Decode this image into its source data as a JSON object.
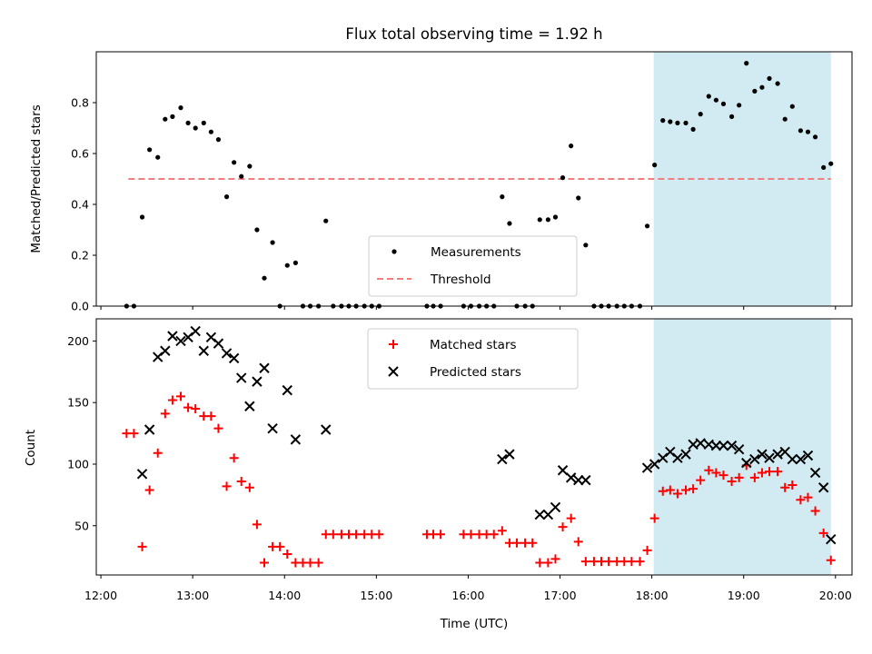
{
  "chart_data": {
    "title": "Flux total observing time = 1.92 h",
    "xlabel": "Time (UTC)",
    "x_ticks": [
      "12:00",
      "13:00",
      "14:00",
      "15:00",
      "16:00",
      "17:00",
      "18:00",
      "19:00",
      "20:00"
    ],
    "x_tick_hours": [
      12,
      13,
      14,
      15,
      16,
      17,
      18,
      19,
      20
    ],
    "xlim_hours": [
      11.95,
      20.18
    ],
    "highlight_span_hours": [
      18.02,
      19.95
    ],
    "colors": {
      "highlight": "#add8e6",
      "measurements": "#000000",
      "threshold": "#f08080",
      "matched": "#ff0000",
      "predicted": "#000000"
    },
    "panels": [
      {
        "type": "scatter",
        "ylabel": "Matched/Predicted stars",
        "ylim": [
          0,
          1.0
        ],
        "y_ticks": [
          0.0,
          0.2,
          0.4,
          0.6,
          0.8
        ],
        "y_tick_labels": [
          "0.0",
          "0.2",
          "0.4",
          "0.6",
          "0.8"
        ],
        "legend_position": "bottom-center",
        "legend": [
          "Measurements",
          "Threshold"
        ],
        "threshold": {
          "value": 0.5,
          "x_range": [
            12.3,
            19.95
          ]
        },
        "series": [
          {
            "name": "Measurements",
            "marker": "dot",
            "points": [
              [
                12.28,
                0.0
              ],
              [
                12.36,
                0.0
              ],
              [
                12.45,
                0.35
              ],
              [
                12.53,
                0.615
              ],
              [
                12.62,
                0.585
              ],
              [
                12.7,
                0.735
              ],
              [
                12.78,
                0.745
              ],
              [
                12.87,
                0.78
              ],
              [
                12.95,
                0.72
              ],
              [
                13.03,
                0.7
              ],
              [
                13.12,
                0.72
              ],
              [
                13.2,
                0.685
              ],
              [
                13.28,
                0.655
              ],
              [
                13.37,
                0.43
              ],
              [
                13.45,
                0.565
              ],
              [
                13.53,
                0.51
              ],
              [
                13.62,
                0.55
              ],
              [
                13.7,
                0.3
              ],
              [
                13.78,
                0.11
              ],
              [
                13.87,
                0.25
              ],
              [
                13.95,
                0.0
              ],
              [
                14.03,
                0.16
              ],
              [
                14.12,
                0.17
              ],
              [
                14.2,
                0.0
              ],
              [
                14.28,
                0.0
              ],
              [
                14.37,
                0.0
              ],
              [
                14.45,
                0.335
              ],
              [
                14.53,
                0.0
              ],
              [
                14.62,
                0.0
              ],
              [
                14.7,
                0.0
              ],
              [
                14.78,
                0.0
              ],
              [
                14.87,
                0.0
              ],
              [
                14.95,
                0.0
              ],
              [
                15.03,
                0.0
              ],
              [
                15.55,
                0.0
              ],
              [
                15.62,
                0.0
              ],
              [
                15.7,
                0.0
              ],
              [
                15.95,
                0.0
              ],
              [
                16.03,
                0.0
              ],
              [
                16.12,
                0.0
              ],
              [
                16.2,
                0.0
              ],
              [
                16.28,
                0.0
              ],
              [
                16.37,
                0.43
              ],
              [
                16.45,
                0.325
              ],
              [
                16.53,
                0.0
              ],
              [
                16.62,
                0.0
              ],
              [
                16.7,
                0.0
              ],
              [
                16.78,
                0.34
              ],
              [
                16.87,
                0.34
              ],
              [
                16.95,
                0.35
              ],
              [
                17.03,
                0.505
              ],
              [
                17.12,
                0.63
              ],
              [
                17.2,
                0.425
              ],
              [
                17.28,
                0.24
              ],
              [
                17.37,
                0.0
              ],
              [
                17.45,
                0.0
              ],
              [
                17.53,
                0.0
              ],
              [
                17.62,
                0.0
              ],
              [
                17.7,
                0.0
              ],
              [
                17.78,
                0.0
              ],
              [
                17.87,
                0.0
              ],
              [
                17.95,
                0.315
              ],
              [
                18.03,
                0.555
              ],
              [
                18.12,
                0.73
              ],
              [
                18.2,
                0.725
              ],
              [
                18.28,
                0.72
              ],
              [
                18.37,
                0.72
              ],
              [
                18.45,
                0.695
              ],
              [
                18.53,
                0.755
              ],
              [
                18.62,
                0.825
              ],
              [
                18.7,
                0.81
              ],
              [
                18.78,
                0.795
              ],
              [
                18.87,
                0.745
              ],
              [
                18.95,
                0.79
              ],
              [
                19.03,
                0.955
              ],
              [
                19.12,
                0.845
              ],
              [
                19.2,
                0.86
              ],
              [
                19.28,
                0.895
              ],
              [
                19.37,
                0.875
              ],
              [
                19.45,
                0.735
              ],
              [
                19.53,
                0.785
              ],
              [
                19.62,
                0.69
              ],
              [
                19.7,
                0.685
              ],
              [
                19.78,
                0.665
              ],
              [
                19.87,
                0.545
              ],
              [
                19.95,
                0.56
              ]
            ]
          }
        ]
      },
      {
        "type": "scatter",
        "ylabel": "Count",
        "ylim": [
          10,
          218
        ],
        "y_ticks": [
          50,
          100,
          150,
          200
        ],
        "y_tick_labels": [
          "50",
          "100",
          "150",
          "200"
        ],
        "legend_position": "top-center",
        "legend": [
          "Matched stars",
          "Predicted stars"
        ],
        "series": [
          {
            "name": "Matched stars",
            "marker": "plus",
            "points": [
              [
                12.28,
                125
              ],
              [
                12.36,
                125
              ],
              [
                12.45,
                33
              ],
              [
                12.53,
                79
              ],
              [
                12.62,
                109
              ],
              [
                12.7,
                141
              ],
              [
                12.78,
                152
              ],
              [
                12.87,
                155
              ],
              [
                12.95,
                146
              ],
              [
                13.03,
                145
              ],
              [
                13.12,
                139
              ],
              [
                13.2,
                139
              ],
              [
                13.28,
                129
              ],
              [
                13.37,
                82
              ],
              [
                13.45,
                105
              ],
              [
                13.53,
                86
              ],
              [
                13.62,
                81
              ],
              [
                13.7,
                51
              ],
              [
                13.78,
                20
              ],
              [
                13.87,
                33
              ],
              [
                13.95,
                33
              ],
              [
                14.03,
                27
              ],
              [
                14.12,
                20
              ],
              [
                14.2,
                20
              ],
              [
                14.28,
                20
              ],
              [
                14.37,
                20
              ],
              [
                14.45,
                43
              ],
              [
                14.53,
                43
              ],
              [
                14.62,
                43
              ],
              [
                14.7,
                43
              ],
              [
                14.78,
                43
              ],
              [
                14.87,
                43
              ],
              [
                14.95,
                43
              ],
              [
                15.03,
                43
              ],
              [
                15.55,
                43
              ],
              [
                15.62,
                43
              ],
              [
                15.7,
                43
              ],
              [
                15.95,
                43
              ],
              [
                16.03,
                43
              ],
              [
                16.12,
                43
              ],
              [
                16.2,
                43
              ],
              [
                16.28,
                43
              ],
              [
                16.37,
                46
              ],
              [
                16.45,
                36
              ],
              [
                16.53,
                36
              ],
              [
                16.62,
                36
              ],
              [
                16.7,
                36
              ],
              [
                16.78,
                20
              ],
              [
                16.87,
                20
              ],
              [
                16.95,
                23
              ],
              [
                17.03,
                49
              ],
              [
                17.12,
                56
              ],
              [
                17.2,
                37
              ],
              [
                17.28,
                21
              ],
              [
                17.37,
                21
              ],
              [
                17.45,
                21
              ],
              [
                17.53,
                21
              ],
              [
                17.62,
                21
              ],
              [
                17.7,
                21
              ],
              [
                17.78,
                21
              ],
              [
                17.87,
                21
              ],
              [
                17.95,
                30
              ],
              [
                18.03,
                56
              ],
              [
                18.12,
                78
              ],
              [
                18.2,
                79
              ],
              [
                18.28,
                76
              ],
              [
                18.37,
                79
              ],
              [
                18.45,
                80
              ],
              [
                18.53,
                87
              ],
              [
                18.62,
                95
              ],
              [
                18.7,
                93
              ],
              [
                18.78,
                91
              ],
              [
                18.87,
                86
              ],
              [
                18.95,
                89
              ],
              [
                19.03,
                99
              ],
              [
                19.12,
                89
              ],
              [
                19.2,
                93
              ],
              [
                19.28,
                94
              ],
              [
                19.37,
                94
              ],
              [
                19.45,
                81
              ],
              [
                19.53,
                83
              ],
              [
                19.62,
                71
              ],
              [
                19.7,
                73
              ],
              [
                19.78,
                62
              ],
              [
                19.87,
                44
              ],
              [
                19.95,
                22
              ]
            ]
          },
          {
            "name": "Predicted stars",
            "marker": "x",
            "points": [
              [
                12.45,
                92
              ],
              [
                12.53,
                128
              ],
              [
                12.62,
                187
              ],
              [
                12.7,
                192
              ],
              [
                12.78,
                204
              ],
              [
                12.87,
                200
              ],
              [
                12.95,
                203
              ],
              [
                13.03,
                208
              ],
              [
                13.12,
                192
              ],
              [
                13.2,
                203
              ],
              [
                13.28,
                198
              ],
              [
                13.37,
                190
              ],
              [
                13.45,
                186
              ],
              [
                13.53,
                170
              ],
              [
                13.62,
                147
              ],
              [
                13.7,
                167
              ],
              [
                13.78,
                178
              ],
              [
                13.87,
                129
              ],
              [
                14.03,
                160
              ],
              [
                14.12,
                120
              ],
              [
                14.45,
                128
              ],
              [
                16.37,
                104
              ],
              [
                16.45,
                108
              ],
              [
                16.78,
                59
              ],
              [
                16.87,
                59
              ],
              [
                16.95,
                65
              ],
              [
                17.03,
                95
              ],
              [
                17.12,
                89
              ],
              [
                17.2,
                87
              ],
              [
                17.28,
                87
              ],
              [
                17.95,
                97
              ],
              [
                18.03,
                100
              ],
              [
                18.12,
                105
              ],
              [
                18.2,
                110
              ],
              [
                18.28,
                105
              ],
              [
                18.37,
                108
              ],
              [
                18.45,
                116
              ],
              [
                18.53,
                117
              ],
              [
                18.62,
                116
              ],
              [
                18.7,
                115
              ],
              [
                18.78,
                115
              ],
              [
                18.87,
                115
              ],
              [
                18.95,
                112
              ],
              [
                19.03,
                101
              ],
              [
                19.12,
                104
              ],
              [
                19.2,
                108
              ],
              [
                19.28,
                105
              ],
              [
                19.37,
                108
              ],
              [
                19.45,
                110
              ],
              [
                19.53,
                104
              ],
              [
                19.62,
                104
              ],
              [
                19.7,
                107
              ],
              [
                19.78,
                93
              ],
              [
                19.87,
                81
              ],
              [
                19.95,
                39
              ]
            ]
          }
        ]
      }
    ]
  }
}
